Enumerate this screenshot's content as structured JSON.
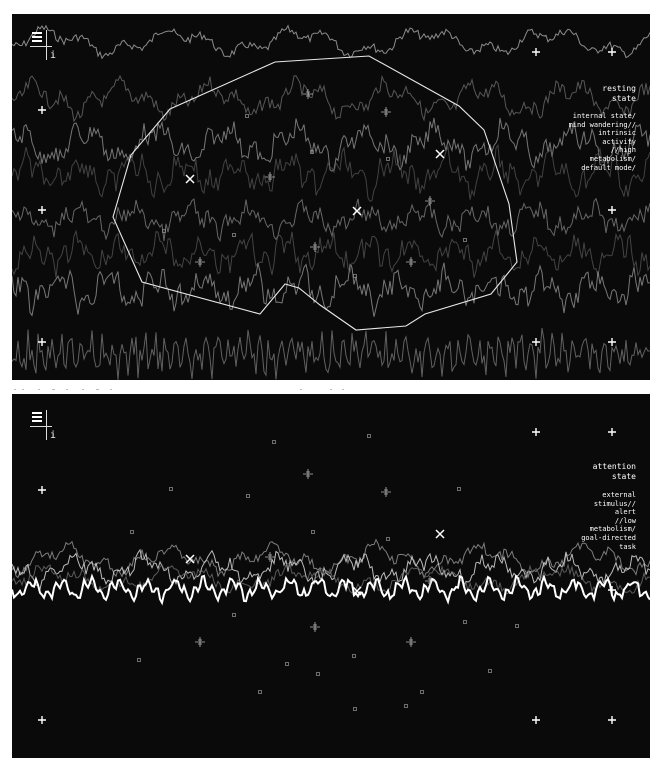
{
  "panels": [
    {
      "id": "resting",
      "info_label": "i",
      "state_title": "resting\nstate",
      "state_description": "internal state/\nmind wandering//\nintrinsic\nactivity\n//high\nmetabolism/\ndefault mode/"
    },
    {
      "id": "attention",
      "info_label": "i",
      "state_title": "attention\nstate",
      "state_description": "external\nstimulus//\nalert\n//low\nmetabolism/\ngoal-directed\ntask"
    }
  ],
  "colors": {
    "background": "#0a0a0a",
    "foreground": "#ffffff",
    "wave_dim": "#6e6e6e"
  },
  "icons": [
    "menu-icon",
    "info-icon",
    "plus-marker-icon",
    "cross-marker-icon",
    "crosshair-marker-icon",
    "square-marker-icon"
  ]
}
